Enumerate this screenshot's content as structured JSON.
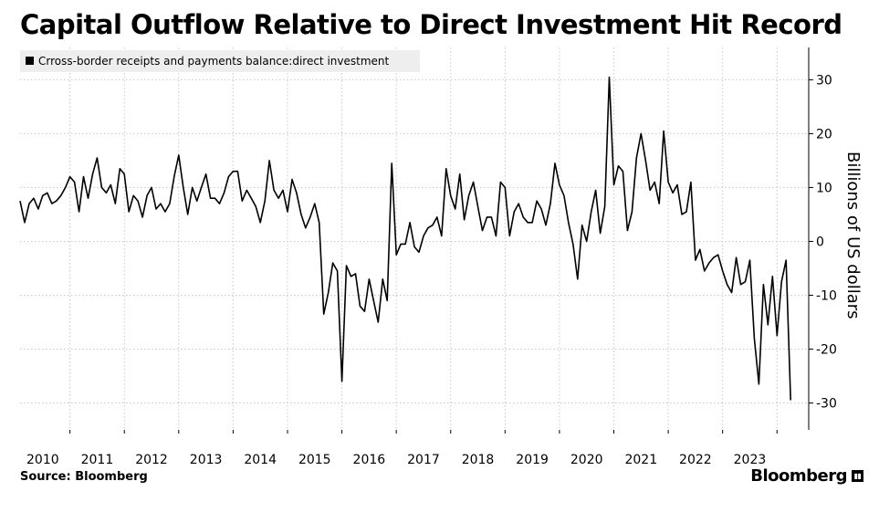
{
  "title": "Capital Outflow Relative to Direct Investment Hit Record",
  "source": "Source: Bloomberg",
  "brand": "Bloomberg",
  "brand_icon": "bloomberg-terminal-icon",
  "colors": {
    "line": "#000000",
    "grid": "#c8c8c8",
    "legend_bg": "#eeeeee"
  },
  "chart_data": {
    "type": "line",
    "title": "Capital Outflow Relative to Direct Investment Hit Record",
    "legend": "Crross-border receipts and payments balance:direct investment",
    "ylabel": "Billions of US dollars",
    "xlabel": "",
    "x_ticks": [
      "2010",
      "2011",
      "2012",
      "2013",
      "2014",
      "2015",
      "2016",
      "2017",
      "2018",
      "2019",
      "2020",
      "2021",
      "2022",
      "2023"
    ],
    "y_ticks": [
      30,
      20,
      10,
      0,
      -10,
      -20,
      -30
    ],
    "ylim": [
      -35,
      36
    ],
    "xlim": [
      2009.583,
      2024.083
    ],
    "grid": true,
    "series": [
      {
        "name": "Crross-border receipts and payments balance:direct investment",
        "start": "2009-08",
        "frequency": "monthly",
        "values": [
          7.5,
          3.5,
          7,
          8,
          6,
          8.5,
          9,
          7,
          7.5,
          8.5,
          10,
          12,
          11,
          5.5,
          12,
          8,
          12.5,
          15.5,
          10,
          9,
          10.5,
          7,
          13.5,
          12.5,
          5.5,
          8.5,
          7.5,
          4.5,
          8.5,
          10,
          6,
          7,
          5.5,
          7,
          12,
          16,
          10,
          5,
          10,
          7.5,
          10,
          12.5,
          8,
          8,
          7,
          9,
          12,
          13,
          13,
          7.5,
          9.5,
          8,
          6.5,
          3.5,
          7.5,
          15,
          9.5,
          8,
          9.5,
          5.5,
          11.5,
          9,
          5,
          2.5,
          4.5,
          7,
          3.5,
          -13.5,
          -9.5,
          -4,
          -5.5,
          -26,
          -4.5,
          -6.5,
          -6,
          -12,
          -13,
          -7,
          -11,
          -15,
          -7,
          -11,
          14.5,
          -2.5,
          -0.5,
          -0.5,
          3.5,
          -1,
          -2,
          1,
          2.5,
          3,
          4.5,
          1,
          13.5,
          8.5,
          6,
          12.5,
          4,
          8.5,
          11,
          6.5,
          2,
          4.5,
          4.5,
          1,
          11,
          10,
          1,
          5.5,
          7,
          4.5,
          3.5,
          3.5,
          7.5,
          6,
          3,
          7,
          14.5,
          10.5,
          8.5,
          3.5,
          -0.5,
          -7,
          3,
          0,
          5.5,
          9.5,
          1.5,
          6.5,
          30.5,
          10.5,
          14,
          13,
          2,
          5.5,
          15.5,
          20,
          15,
          9.5,
          11,
          7,
          20.5,
          11,
          9,
          10.5,
          5,
          5.5,
          11,
          -3.5,
          -1.5,
          -5.5,
          -4,
          -3,
          -2.5,
          -5.5,
          -8,
          -9.5,
          -3,
          -8,
          -7.5,
          -3.5,
          -18,
          -26.5,
          -8,
          -15.5,
          -6.5,
          -17.5,
          -7.5,
          -3.5,
          -29.5
        ]
      }
    ]
  }
}
